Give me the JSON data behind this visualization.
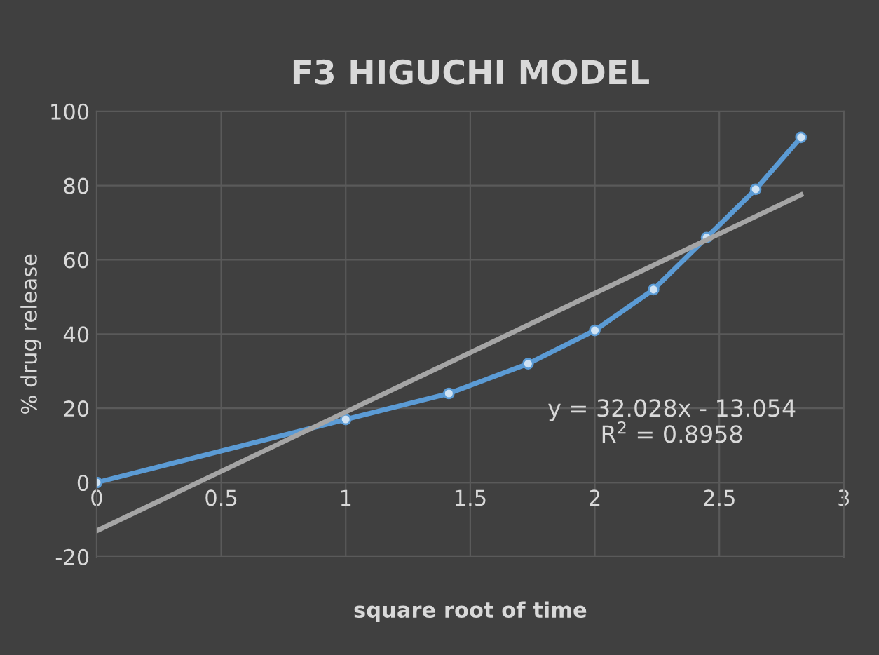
{
  "chart_data": {
    "type": "line",
    "title": "F3 HIGUCHI MODEL",
    "xlabel": "square root of time",
    "ylabel": "% drug release",
    "x": [
      0,
      1,
      1.414,
      1.732,
      2,
      2.236,
      2.449,
      2.646,
      2.828
    ],
    "series": [
      {
        "color": "#5b9bd5",
        "marker": "circle",
        "values": [
          0,
          17,
          24,
          32,
          41,
          52,
          66,
          79,
          93
        ]
      },
      {
        "color": "#a5a5a5",
        "marker": "none",
        "x": [
          0,
          2.828
        ],
        "values": [
          -13,
          77.5
        ]
      }
    ],
    "xlim": [
      0,
      3
    ],
    "xticks": [
      0,
      0.5,
      1,
      1.5,
      2,
      2.5,
      3
    ],
    "ylim": [
      -20,
      100
    ],
    "yticks": [
      -20,
      0,
      20,
      40,
      60,
      80,
      100
    ],
    "grid": true,
    "legend": false,
    "annotations": [
      "y = 32.028x - 13.054\nR$^{2}$ = 0.8958"
    ]
  }
}
